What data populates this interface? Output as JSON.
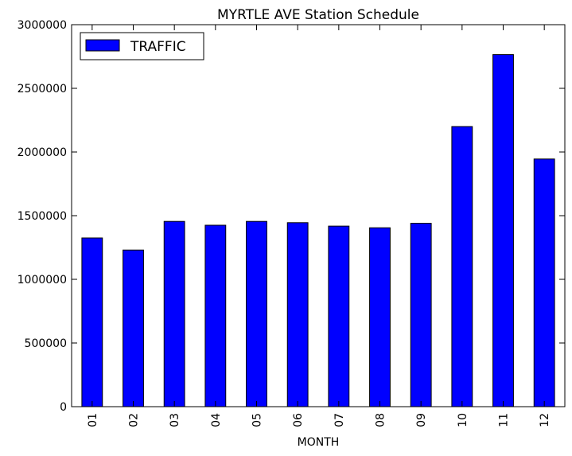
{
  "chart_data": {
    "type": "bar",
    "title": "MYRTLE AVE Station Schedule",
    "xlabel": "MONTH",
    "ylabel": "",
    "categories": [
      "01",
      "02",
      "03",
      "04",
      "05",
      "06",
      "07",
      "08",
      "09",
      "10",
      "11",
      "12"
    ],
    "series": [
      {
        "name": "TRAFFIC",
        "color": "#0000ff",
        "values": [
          1325000,
          1230000,
          1455000,
          1425000,
          1455000,
          1445000,
          1418000,
          1405000,
          1440000,
          2200000,
          2765000,
          1945000
        ]
      }
    ],
    "ylim": [
      0,
      3000000
    ],
    "yticks": [
      "0",
      "500000",
      "1000000",
      "1500000",
      "2000000",
      "2500000",
      "3000000"
    ],
    "grid": false,
    "legend_position": "top-left"
  }
}
